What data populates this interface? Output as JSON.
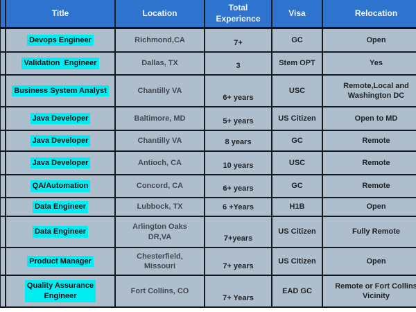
{
  "colors": {
    "header_bg": "#2e74cf",
    "body_bg": "#afbecd",
    "border": "#15181d",
    "title_highlight": "#00eef2",
    "header_text": "#f5f7fa"
  },
  "table": {
    "headers": {
      "title": "Title",
      "location": "Location",
      "experience": "Total\nExperience",
      "visa": "Visa",
      "relocation": "Relocation"
    },
    "rows": [
      {
        "title": "Devops Engineer",
        "location": "Richmond,CA",
        "experience": "7+",
        "visa": "GC",
        "relocation": "Open"
      },
      {
        "title": "Validation  Engineer",
        "location": "Dallas, TX",
        "experience": "3",
        "visa": "Stem OPT",
        "relocation": "Yes"
      },
      {
        "title": "Business System Analyst",
        "location": "Chantilly VA",
        "experience": "6+ years",
        "visa": "USC",
        "relocation": "Remote,Local and\nWashington DC"
      },
      {
        "title": "Java Developer",
        "location": "Baltimore, MD",
        "experience": "5+ years",
        "visa": "US Citizen",
        "relocation": "Open to MD"
      },
      {
        "title": "Java Developer",
        "location": "Chantilly VA",
        "experience": "8 years",
        "visa": "GC",
        "relocation": "Remote"
      },
      {
        "title": "Java Developer",
        "location": "Antioch, CA",
        "experience": "10 years",
        "visa": "USC",
        "relocation": "Remote"
      },
      {
        "title": "QA/Automation",
        "location": "Concord, CA",
        "experience": "6+ years",
        "visa": "GC",
        "relocation": "Remote"
      },
      {
        "title": "Data Engineer",
        "location": "Lubbock, TX",
        "experience": "6 +Years",
        "visa": "H1B",
        "relocation": "Open"
      },
      {
        "title": "Data Engineer",
        "location": "Arlington Oaks\nDR,VA",
        "experience": "7+years",
        "visa": "US Citizen",
        "relocation": "Fully Remote"
      },
      {
        "title": "Product Manager",
        "location": "Chesterfield,\nMissouri",
        "experience": "7+ years",
        "visa": "US Citizen",
        "relocation": "Open"
      },
      {
        "title": "Quality Assurance\nEngineer",
        "location": "Fort Collins, CO",
        "experience": "7+ Years",
        "visa": "EAD GC",
        "relocation": "Remote or Fort Collins\nVicinity"
      }
    ]
  }
}
